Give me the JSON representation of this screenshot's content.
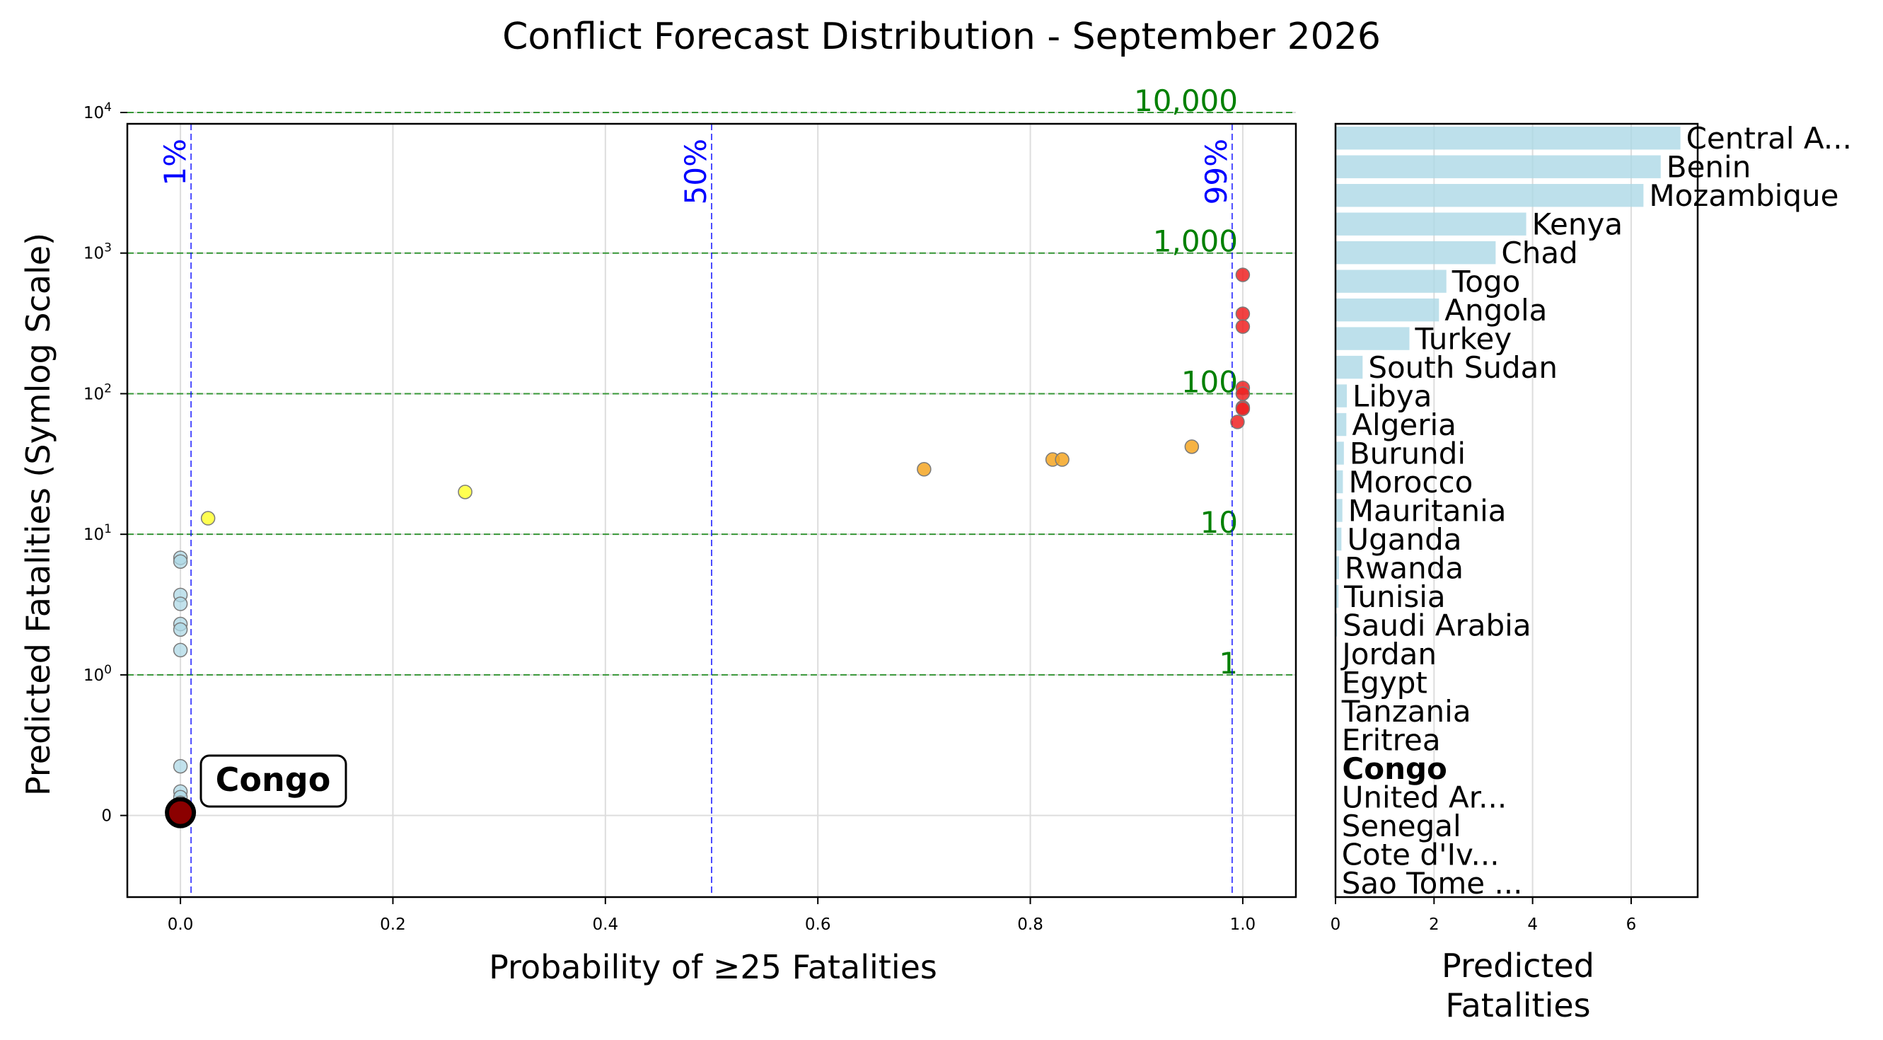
{
  "title": "Conflict Forecast Distribution - September 2026",
  "colors": {
    "low": "#add8e6",
    "yellow": "#ffff33",
    "orange": "#f5a623",
    "red": "#ee2222",
    "highlight": "#8b0000",
    "threshold_line": "#0000ff",
    "fatality_line": "#008000",
    "bar": "#add8e6"
  },
  "chart_data": [
    {
      "type": "scatter",
      "xlabel": "Probability of ≥25 Fatalities",
      "ylabel": "Predicted Fatalities (Symlog Scale)",
      "yscale": "symlog",
      "xlim": [
        -0.05,
        1.05
      ],
      "ylim": [
        -0.5,
        10000
      ],
      "x_ticks": [
        0.0,
        0.2,
        0.4,
        0.6,
        0.8,
        1.0
      ],
      "x_tick_labels": [
        "0.0",
        "0.2",
        "0.4",
        "0.6",
        "0.8",
        "1.0"
      ],
      "y_ticks": [
        {
          "value": 0,
          "base": "0",
          "exp": ""
        },
        {
          "value": 1,
          "base": "10",
          "exp": "0"
        },
        {
          "value": 10,
          "base": "10",
          "exp": "1"
        },
        {
          "value": 100,
          "base": "10",
          "exp": "2"
        },
        {
          "value": 1000,
          "base": "10",
          "exp": "3"
        },
        {
          "value": 10000,
          "base": "10",
          "exp": "4"
        }
      ],
      "grid": true,
      "threshold_lines": [
        {
          "x": 0.01,
          "label": "1%"
        },
        {
          "x": 0.5,
          "label": "50%"
        },
        {
          "x": 0.99,
          "label": "99%"
        }
      ],
      "fatality_lines": [
        {
          "y": 1,
          "label": "1"
        },
        {
          "y": 10,
          "label": "10"
        },
        {
          "y": 100,
          "label": "100"
        },
        {
          "y": 1000,
          "label": "1,000"
        },
        {
          "y": 10000,
          "label": "10,000"
        }
      ],
      "points": [
        {
          "x": 1.0,
          "y": 700,
          "color": "red"
        },
        {
          "x": 1.0,
          "y": 370,
          "color": "red"
        },
        {
          "x": 1.0,
          "y": 300,
          "color": "red"
        },
        {
          "x": 1.0,
          "y": 110,
          "color": "red"
        },
        {
          "x": 1.0,
          "y": 100,
          "color": "red"
        },
        {
          "x": 1.0,
          "y": 80,
          "color": "red"
        },
        {
          "x": 1.0,
          "y": 78,
          "color": "red"
        },
        {
          "x": 0.995,
          "y": 63,
          "color": "red"
        },
        {
          "x": 0.952,
          "y": 42,
          "color": "orange"
        },
        {
          "x": 0.821,
          "y": 34,
          "color": "orange"
        },
        {
          "x": 0.83,
          "y": 34,
          "color": "orange"
        },
        {
          "x": 0.7,
          "y": 29,
          "color": "orange"
        },
        {
          "x": 0.268,
          "y": 20,
          "color": "yellow"
        },
        {
          "x": 0.026,
          "y": 13,
          "color": "yellow"
        },
        {
          "x": 0.0,
          "y": 6.8,
          "color": "low"
        },
        {
          "x": 0.0,
          "y": 6.4,
          "color": "low"
        },
        {
          "x": 0.0,
          "y": 3.7,
          "color": "low"
        },
        {
          "x": 0.0,
          "y": 3.2,
          "color": "low"
        },
        {
          "x": 0.0,
          "y": 2.3,
          "color": "low"
        },
        {
          "x": 0.0,
          "y": 2.1,
          "color": "low"
        },
        {
          "x": 0.0,
          "y": 1.5,
          "color": "low"
        },
        {
          "x": 0.0,
          "y": 0.35,
          "color": "low"
        },
        {
          "x": 0.0,
          "y": 0.17,
          "color": "low"
        },
        {
          "x": 0.0,
          "y": 0.13,
          "color": "low"
        },
        {
          "x": 0.0,
          "y": 0.09,
          "color": "low"
        },
        {
          "x": 0.0,
          "y": 0.06,
          "color": "low"
        },
        {
          "x": 0.0,
          "y": 0.04,
          "color": "low"
        },
        {
          "x": 0.0,
          "y": 0.02,
          "color": "low"
        }
      ],
      "highlight": {
        "x": 0.0,
        "y": 0.02,
        "label": "Congo"
      }
    },
    {
      "type": "bar",
      "orientation": "horizontal",
      "xlabel": "Predicted Fatalities",
      "xlabel_lines": [
        "Predicted",
        "Fatalities"
      ],
      "xlim": [
        0,
        7.35
      ],
      "x_ticks": [
        0,
        2,
        4,
        6
      ],
      "x_tick_labels": [
        "0",
        "2",
        "4",
        "6"
      ],
      "grid": true,
      "highlight_category": "Congo",
      "categories": [
        "Central A...",
        "Benin",
        "Mozambique",
        "Kenya",
        "Chad",
        "Togo",
        "Angola",
        "Turkey",
        "South Sudan",
        "Libya",
        "Algeria",
        "Burundi",
        "Morocco",
        "Mauritania",
        "Uganda",
        "Rwanda",
        "Tunisia",
        "Saudi Arabia",
        "Jordan",
        "Egypt",
        "Tanzania",
        "Eritrea",
        "Congo",
        "United Ar...",
        "Senegal",
        "Cote d'Iv...",
        "Sao Tome ..."
      ],
      "values": [
        7.0,
        6.6,
        6.25,
        3.87,
        3.25,
        2.25,
        2.1,
        1.5,
        0.55,
        0.23,
        0.22,
        0.17,
        0.15,
        0.14,
        0.12,
        0.07,
        0.06,
        0.03,
        0.02,
        0.01,
        0.01,
        0.01,
        0.02,
        0.01,
        0.01,
        0.01,
        0.01
      ]
    }
  ]
}
